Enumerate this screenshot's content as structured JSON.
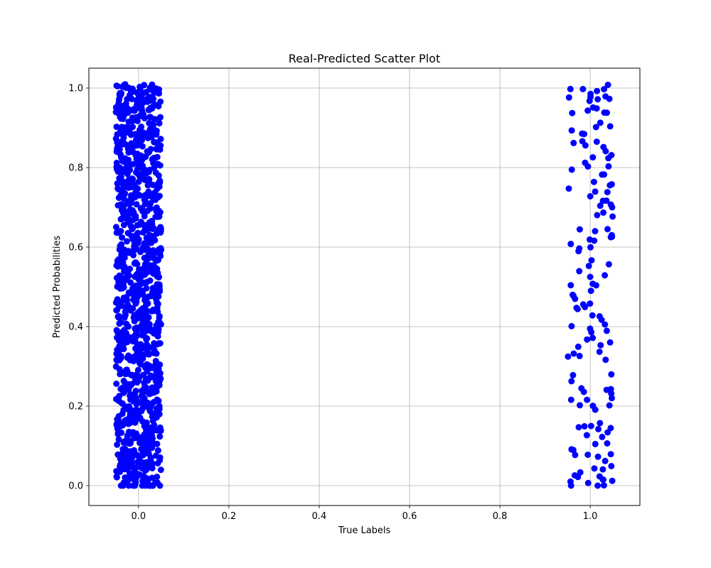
{
  "chart_data": {
    "type": "scatter",
    "title": "Real-Predicted Scatter Plot",
    "xlabel": "True Labels",
    "ylabel": "Predicted Probabilities",
    "xlim": [
      -0.11,
      1.11
    ],
    "ylim": [
      -0.05,
      1.05
    ],
    "x_ticks": [
      "0.0",
      "0.2",
      "0.4",
      "0.6",
      "0.8",
      "1.0"
    ],
    "y_ticks": [
      "0.0",
      "0.2",
      "0.4",
      "0.6",
      "0.8",
      "1.0"
    ],
    "grid": true,
    "marker_color": "#0000ff",
    "jitter": 0.05,
    "series": [
      {
        "values": [
          {
            "x": 0,
            "y": 0.0
          },
          {
            "x": 0,
            "y": 0.02
          },
          {
            "x": 0,
            "y": 0.04
          },
          {
            "x": 0,
            "y": 0.06
          },
          {
            "x": 0,
            "y": 0.08
          },
          {
            "x": 0,
            "y": 0.1
          },
          {
            "x": 0,
            "y": 0.12
          },
          {
            "x": 0,
            "y": 0.14
          },
          {
            "x": 0,
            "y": 0.16
          },
          {
            "x": 0,
            "y": 0.18
          },
          {
            "x": 0,
            "y": 0.2
          },
          {
            "x": 0,
            "y": 0.22
          },
          {
            "x": 0,
            "y": 0.24
          },
          {
            "x": 0,
            "y": 0.26
          },
          {
            "x": 0,
            "y": 0.28
          },
          {
            "x": 0,
            "y": 0.3
          },
          {
            "x": 0,
            "y": 0.32
          },
          {
            "x": 0,
            "y": 0.34
          },
          {
            "x": 0,
            "y": 0.36
          },
          {
            "x": 0,
            "y": 0.38
          },
          {
            "x": 0,
            "y": 0.4
          },
          {
            "x": 0,
            "y": 0.42
          },
          {
            "x": 0,
            "y": 0.44
          },
          {
            "x": 0,
            "y": 0.46
          },
          {
            "x": 0,
            "y": 0.48
          },
          {
            "x": 0,
            "y": 0.5
          },
          {
            "x": 0,
            "y": 0.52
          },
          {
            "x": 0,
            "y": 0.54
          },
          {
            "x": 0,
            "y": 0.56
          },
          {
            "x": 0,
            "y": 0.58
          },
          {
            "x": 0,
            "y": 0.6
          },
          {
            "x": 0,
            "y": 0.62
          },
          {
            "x": 0,
            "y": 0.64
          },
          {
            "x": 0,
            "y": 0.66
          },
          {
            "x": 0,
            "y": 0.68
          },
          {
            "x": 0,
            "y": 0.7
          },
          {
            "x": 0,
            "y": 0.72
          },
          {
            "x": 0,
            "y": 0.74
          },
          {
            "x": 0,
            "y": 0.76
          },
          {
            "x": 0,
            "y": 0.78
          },
          {
            "x": 0,
            "y": 0.8
          },
          {
            "x": 0,
            "y": 0.82
          },
          {
            "x": 0,
            "y": 0.84
          },
          {
            "x": 0,
            "y": 0.86
          },
          {
            "x": 0,
            "y": 0.88
          },
          {
            "x": 0,
            "y": 0.9
          },
          {
            "x": 0,
            "y": 0.92
          },
          {
            "x": 0,
            "y": 0.94
          },
          {
            "x": 0,
            "y": 0.96
          },
          {
            "x": 0,
            "y": 0.98
          },
          {
            "x": 0,
            "y": 1.0
          },
          {
            "x": 1,
            "y": 0.0
          },
          {
            "x": 1,
            "y": 0.01
          },
          {
            "x": 1,
            "y": 0.02
          },
          {
            "x": 1,
            "y": 0.03
          },
          {
            "x": 1,
            "y": 0.05
          },
          {
            "x": 1,
            "y": 0.07
          },
          {
            "x": 1,
            "y": 0.08
          },
          {
            "x": 1,
            "y": 0.1
          },
          {
            "x": 1,
            "y": 0.13
          },
          {
            "x": 1,
            "y": 0.14
          },
          {
            "x": 1,
            "y": 0.15
          },
          {
            "x": 1,
            "y": 0.2
          },
          {
            "x": 1,
            "y": 0.21
          },
          {
            "x": 1,
            "y": 0.23
          },
          {
            "x": 1,
            "y": 0.25
          },
          {
            "x": 1,
            "y": 0.27
          },
          {
            "x": 1,
            "y": 0.32
          },
          {
            "x": 1,
            "y": 0.34
          },
          {
            "x": 1,
            "y": 0.36
          },
          {
            "x": 1,
            "y": 0.38
          },
          {
            "x": 1,
            "y": 0.4
          },
          {
            "x": 1,
            "y": 0.42
          },
          {
            "x": 1,
            "y": 0.44
          },
          {
            "x": 1,
            "y": 0.46
          },
          {
            "x": 1,
            "y": 0.48
          },
          {
            "x": 1,
            "y": 0.5
          },
          {
            "x": 1,
            "y": 0.53
          },
          {
            "x": 1,
            "y": 0.56
          },
          {
            "x": 1,
            "y": 0.59
          },
          {
            "x": 1,
            "y": 0.61
          },
          {
            "x": 1,
            "y": 0.63
          },
          {
            "x": 1,
            "y": 0.65
          },
          {
            "x": 1,
            "y": 0.68
          },
          {
            "x": 1,
            "y": 0.7
          },
          {
            "x": 1,
            "y": 0.72
          },
          {
            "x": 1,
            "y": 0.74
          },
          {
            "x": 1,
            "y": 0.76
          },
          {
            "x": 1,
            "y": 0.79
          },
          {
            "x": 1,
            "y": 0.81
          },
          {
            "x": 1,
            "y": 0.83
          },
          {
            "x": 1,
            "y": 0.85
          },
          {
            "x": 1,
            "y": 0.87
          },
          {
            "x": 1,
            "y": 0.89
          },
          {
            "x": 1,
            "y": 0.91
          },
          {
            "x": 1,
            "y": 0.93
          },
          {
            "x": 1,
            "y": 0.95
          },
          {
            "x": 1,
            "y": 0.97
          },
          {
            "x": 1,
            "y": 0.98
          },
          {
            "x": 1,
            "y": 0.99
          },
          {
            "x": 1,
            "y": 1.0
          }
        ]
      }
    ]
  }
}
